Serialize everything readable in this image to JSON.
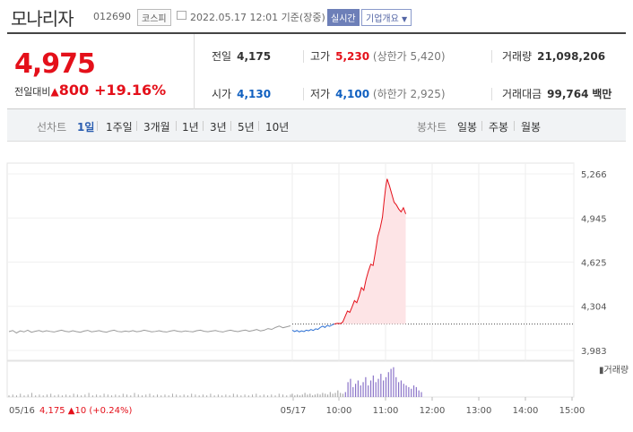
{
  "header": {
    "stock_name": "모나리자",
    "stock_code": "012690",
    "market": "코스피",
    "datetime": "2022.05.17 12:01 기준(장중)",
    "realtime_label": "실시간",
    "company_info": "기업개요"
  },
  "quote": {
    "price": "4,975",
    "change_label": "전일대비",
    "change_amount": "800",
    "change_pct": "+19.16%",
    "up_color": "#e4101a",
    "down_color": "#1060c0"
  },
  "stats": {
    "prev_close_label": "전일",
    "prev_close": "4,175",
    "high_label": "고가",
    "high": "5,230",
    "upper_limit": "(상한가 5,420)",
    "volume_label": "거래량",
    "volume": "21,098,206",
    "open_label": "시가",
    "open": "4,130",
    "low_label": "저가",
    "low": "4,100",
    "lower_limit": "(하한가 2,925)",
    "amount_label": "거래대금",
    "amount": "99,764",
    "amount_unit": "백만"
  },
  "tabs": {
    "line_label": "선차트",
    "line_periods": [
      "1일",
      "1주일",
      "3개월",
      "1년",
      "3년",
      "5년",
      "10년"
    ],
    "active_period": "1일",
    "candle_label": "봉차트",
    "candle_periods": [
      "일봉",
      "주봉",
      "월봉"
    ]
  },
  "chart_data": {
    "type": "line",
    "y_ticks": [
      "5,266",
      "4,945",
      "4,625",
      "4,304",
      "3,983"
    ],
    "ylim": [
      3983,
      5266
    ],
    "prev_close": 4175,
    "x_ticks": [
      "05/17",
      "10:00",
      "11:00",
      "12:00",
      "13:00",
      "14:00",
      "15:00"
    ],
    "prev_day_label": "05/16",
    "prev_day_summary": "4,175 ▲10 (+0.24%)",
    "volume_legend": "거래량",
    "prev_day_series": [
      4120,
      4128,
      4110,
      4125,
      4118,
      4130,
      4115,
      4122,
      4128,
      4119,
      4126,
      4121,
      4117,
      4124,
      4130,
      4122,
      4118,
      4126,
      4120,
      4115,
      4124,
      4129,
      4118,
      4122,
      4127,
      4120,
      4116,
      4125,
      4130,
      4121,
      4118,
      4124,
      4120,
      4127,
      4119,
      4122,
      4130,
      4125,
      4118,
      4121,
      4126,
      4120,
      4117,
      4124,
      4129,
      4122,
      4119,
      4125,
      4121,
      4118,
      4126,
      4130,
      4122,
      4119,
      4124,
      4128,
      4121,
      4117,
      4125,
      4130,
      4124,
      4120,
      4126,
      4131,
      4122,
      4128,
      4135,
      4125,
      4130,
      4142,
      4136,
      4150,
      4160,
      4148,
      4155,
      4162
    ],
    "today_series": [
      [
        0,
        4130
      ],
      [
        3,
        4120
      ],
      [
        6,
        4128
      ],
      [
        9,
        4118
      ],
      [
        12,
        4125
      ],
      [
        15,
        4120
      ],
      [
        18,
        4130
      ],
      [
        21,
        4126
      ],
      [
        24,
        4135
      ],
      [
        27,
        4128
      ],
      [
        30,
        4140
      ],
      [
        33,
        4136
      ],
      [
        36,
        4150
      ],
      [
        39,
        4160
      ],
      [
        42,
        4150
      ],
      [
        45,
        4165
      ],
      [
        48,
        4158
      ],
      [
        51,
        4168
      ],
      [
        54,
        4175
      ],
      [
        58,
        4180
      ],
      [
        62,
        4178
      ],
      [
        65,
        4190
      ],
      [
        68,
        4230
      ],
      [
        71,
        4270
      ],
      [
        74,
        4260
      ],
      [
        77,
        4300
      ],
      [
        80,
        4345
      ],
      [
        83,
        4330
      ],
      [
        86,
        4380
      ],
      [
        89,
        4440
      ],
      [
        92,
        4420
      ],
      [
        95,
        4500
      ],
      [
        98,
        4560
      ],
      [
        101,
        4610
      ],
      [
        104,
        4600
      ],
      [
        107,
        4700
      ],
      [
        110,
        4810
      ],
      [
        113,
        4870
      ],
      [
        116,
        4950
      ],
      [
        118,
        5060
      ],
      [
        120,
        5160
      ],
      [
        122,
        5230
      ],
      [
        125,
        5180
      ],
      [
        128,
        5120
      ],
      [
        131,
        5060
      ],
      [
        134,
        5040
      ],
      [
        137,
        5010
      ],
      [
        140,
        4990
      ],
      [
        143,
        5020
      ],
      [
        146,
        4975
      ]
    ],
    "volume_prev_day": [
      2,
      3,
      2,
      4,
      2,
      3,
      5,
      2,
      3,
      2,
      3,
      4,
      2,
      3,
      2,
      3,
      2,
      4,
      3,
      2,
      3,
      5,
      2,
      3,
      2,
      4,
      3,
      2,
      3,
      2,
      4,
      3,
      2,
      5,
      3,
      2,
      3,
      4,
      2,
      3,
      2,
      3,
      2,
      4,
      3,
      2,
      3,
      2,
      4,
      3,
      2,
      3,
      2,
      4,
      2,
      3,
      2,
      3,
      2,
      4,
      3,
      2,
      3,
      2,
      3,
      4,
      2,
      3,
      2,
      3,
      2,
      4,
      3,
      2,
      3
    ],
    "volume_today": [
      4,
      2,
      3,
      2,
      3,
      5,
      3,
      4,
      2,
      3,
      4,
      3,
      5,
      4,
      3,
      6,
      4,
      5,
      8,
      5,
      4,
      6,
      18,
      22,
      12,
      16,
      20,
      14,
      18,
      24,
      14,
      20,
      26,
      18,
      22,
      28,
      20,
      24,
      30,
      34,
      36,
      24,
      18,
      20,
      16,
      14,
      12,
      10,
      14,
      12,
      8,
      6
    ]
  }
}
